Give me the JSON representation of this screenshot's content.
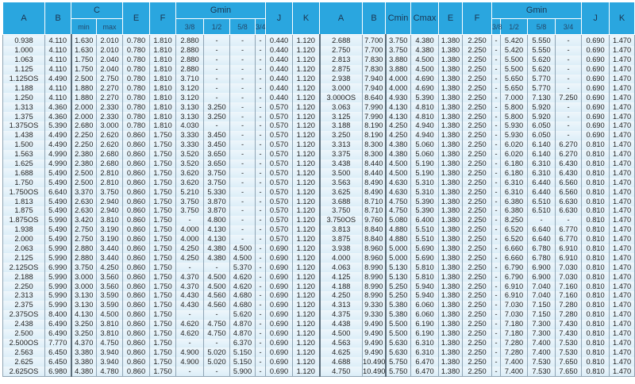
{
  "header": {
    "top": [
      "A",
      "B",
      "C",
      "E",
      "F",
      "Gmin",
      "J",
      "K",
      "A",
      "B",
      "Cmin",
      "Cmax",
      "E",
      "F",
      "Gmin",
      "J",
      "K"
    ],
    "c_sub": [
      "min",
      "max"
    ],
    "g_sub": [
      "3/8",
      "1/2",
      "5/8",
      "3/4"
    ]
  },
  "colors": {
    "header_bg": "#2aa6df",
    "cell_bg": "#e4f2fa"
  },
  "rows": [
    [
      "0.938",
      "4.110",
      "1.630",
      "2.010",
      "0.780",
      "1.810",
      "2.880",
      "-",
      "-",
      "-",
      "0.440",
      "1.120",
      "2.688",
      "7.700",
      "3.750",
      "4.380",
      "1.380",
      "2.250",
      "-",
      "5.420",
      "5.550",
      "-",
      "0.690",
      "1.470"
    ],
    [
      "1.000",
      "4.110",
      "1.630",
      "2.010",
      "0.780",
      "1.810",
      "2.880",
      "-",
      "-",
      "-",
      "0.440",
      "1.120",
      "2.750",
      "7.700",
      "3.750",
      "4.380",
      "1.380",
      "2.250",
      "-",
      "5.420",
      "5.550",
      "-",
      "0.690",
      "1.470"
    ],
    [
      "1.063",
      "4.110",
      "1.750",
      "2.040",
      "0.780",
      "1.810",
      "2.880",
      "-",
      "-",
      "-",
      "0.440",
      "1.120",
      "2.813",
      "7.830",
      "3.880",
      "4.500",
      "1.380",
      "2.250",
      "-",
      "5.500",
      "5.620",
      "-",
      "0.690",
      "1.470"
    ],
    [
      "1.125",
      "4.110",
      "1.750",
      "2.040",
      "0.780",
      "1.810",
      "2.880",
      "-",
      "-",
      "-",
      "0.440",
      "1.120",
      "2.875",
      "7.830",
      "3.880",
      "4.500",
      "1.380",
      "2.250",
      "-",
      "5.500",
      "5.620",
      "-",
      "0.690",
      "1.470"
    ],
    [
      "1.125OS",
      "4.490",
      "2.500",
      "2.750",
      "0.780",
      "1.810",
      "3.710",
      "-",
      "-",
      "-",
      "0.440",
      "1.120",
      "2.938",
      "7.940",
      "4.000",
      "4.690",
      "1.380",
      "2.250",
      "-",
      "5.650",
      "5.770",
      "-",
      "0.690",
      "1.470"
    ],
    [
      "1.188",
      "4.110",
      "1.880",
      "2.270",
      "0.780",
      "1.810",
      "3.120",
      "-",
      "-",
      "-",
      "0.440",
      "1.120",
      "3.000",
      "7.940",
      "4.000",
      "4.690",
      "1.380",
      "2.250",
      "-",
      "5.650",
      "5.770",
      "-",
      "0.690",
      "1.470"
    ],
    [
      "1.250",
      "4.110",
      "1.880",
      "2.270",
      "0.780",
      "1.810",
      "3.120",
      "-",
      "-",
      "-",
      "0.440",
      "1.120",
      "3.000OS",
      "8.640",
      "4.930",
      "5.390",
      "1.380",
      "2.250",
      "-",
      "7.000",
      "7.130",
      "7.250",
      "0.690",
      "1.470"
    ],
    [
      "1.313",
      "4.360",
      "2.000",
      "2.330",
      "0.780",
      "1.810",
      "3.130",
      "3.250",
      "-",
      "-",
      "0.570",
      "1.120",
      "3.063",
      "7.990",
      "4.130",
      "4.810",
      "1.380",
      "2.250",
      "-",
      "5.800",
      "5.920",
      "-",
      "0.690",
      "1.470"
    ],
    [
      "1.375",
      "4.360",
      "2.000",
      "2.330",
      "0.780",
      "1.810",
      "3.130",
      "3.250",
      "-",
      "-",
      "0.570",
      "1.120",
      "3.125",
      "7.990",
      "4.130",
      "4.810",
      "1.380",
      "2.250",
      "-",
      "5.800",
      "5.920",
      "-",
      "0.690",
      "1.470"
    ],
    [
      "1.375OS",
      "5.390",
      "2.680",
      "3.000",
      "0.780",
      "1.810",
      "4.030",
      "-",
      "-",
      "-",
      "0.570",
      "1.120",
      "3.188",
      "8.190",
      "4.250",
      "4.940",
      "1.380",
      "2.250",
      "-",
      "5.930",
      "6.050",
      "-",
      "0.690",
      "1.470"
    ],
    [
      "1.438",
      "4.490",
      "2.250",
      "2.620",
      "0.860",
      "1.750",
      "3.330",
      "3.450",
      "-",
      "-",
      "0.570",
      "1.120",
      "3.250",
      "8.190",
      "4.250",
      "4.940",
      "1.380",
      "2.250",
      "-",
      "5.930",
      "6.050",
      "-",
      "0.690",
      "1.470"
    ],
    [
      "1.500",
      "4.490",
      "2.250",
      "2.620",
      "0.860",
      "1.750",
      "3.330",
      "3.450",
      "-",
      "-",
      "0.570",
      "1.120",
      "3.313",
      "8.300",
      "4.380",
      "5.060",
      "1.380",
      "2.250",
      "-",
      "6.020",
      "6.140",
      "6.270",
      "0.810",
      "1.470"
    ],
    [
      "1.563",
      "4.990",
      "2.380",
      "2.680",
      "0.860",
      "1.750",
      "3.520",
      "3.650",
      "-",
      "-",
      "0.570",
      "1.120",
      "3.375",
      "8.300",
      "4.380",
      "5.060",
      "1.380",
      "2.250",
      "-",
      "6.020",
      "6.140",
      "6.270",
      "0.810",
      "1.470"
    ],
    [
      "1.625",
      "4.990",
      "2.380",
      "2.680",
      "0.860",
      "1.750",
      "3.520",
      "3.650",
      "-",
      "-",
      "0.570",
      "1.120",
      "3.438",
      "8.440",
      "4.500",
      "5.190",
      "1.380",
      "2.250",
      "-",
      "6.180",
      "6.310",
      "6.430",
      "0.810",
      "1.470"
    ],
    [
      "1.688",
      "5.490",
      "2.500",
      "2.810",
      "0.860",
      "1.750",
      "3.620",
      "3.750",
      "-",
      "-",
      "0.570",
      "1.120",
      "3.500",
      "8.440",
      "4.500",
      "5.190",
      "1.380",
      "2.250",
      "-",
      "6.180",
      "6.310",
      "6.430",
      "0.810",
      "1.470"
    ],
    [
      "1.750",
      "5.490",
      "2.500",
      "2.810",
      "0.860",
      "1.750",
      "3.620",
      "3.750",
      "-",
      "-",
      "0.570",
      "1.120",
      "3.563",
      "8.490",
      "4.630",
      "5.310",
      "1.380",
      "2.250",
      "-",
      "6.310",
      "6.440",
      "6.560",
      "0.810",
      "1.470"
    ],
    [
      "1.750OS",
      "6.640",
      "3.370",
      "3.750",
      "0.860",
      "1.750",
      "5.210",
      "5.330",
      "-",
      "-",
      "0.570",
      "1.120",
      "3.625",
      "8.490",
      "4.630",
      "5.310",
      "1.380",
      "2.250",
      "-",
      "6.310",
      "6.440",
      "6.560",
      "0.810",
      "1.470"
    ],
    [
      "1.813",
      "5.490",
      "2.630",
      "2.940",
      "0.860",
      "1.750",
      "3.750",
      "3.870",
      "-",
      "-",
      "0.570",
      "1.120",
      "3.688",
      "8.710",
      "4.750",
      "5.390",
      "1.380",
      "2.250",
      "-",
      "6.380",
      "6.510",
      "6.630",
      "0.810",
      "1.470"
    ],
    [
      "1.875",
      "5.490",
      "2.630",
      "2.940",
      "0.860",
      "1.750",
      "3.750",
      "3.870",
      "-",
      "-",
      "0.570",
      "1.120",
      "3.750",
      "8.710",
      "4.750",
      "5.390",
      "1.380",
      "2.250",
      "-",
      "6.380",
      "6.510",
      "6.630",
      "0.810",
      "1.470"
    ],
    [
      "1.875OS",
      "5.990",
      "3.420",
      "3.810",
      "0.860",
      "1.750",
      "-",
      "4.800",
      "-",
      "-",
      "0.570",
      "1.120",
      "3.750OS",
      "9.760",
      "5.080",
      "6.400",
      "1.380",
      "2.250",
      "-",
      "8.250",
      "-",
      "-",
      "0.810",
      "1.470"
    ],
    [
      "1.938",
      "5.490",
      "2.750",
      "3.190",
      "0.860",
      "1.750",
      "4.000",
      "4.130",
      "-",
      "-",
      "0.570",
      "1.120",
      "3.813",
      "8.840",
      "4.880",
      "5.510",
      "1.380",
      "2.250",
      "-",
      "6.520",
      "6.640",
      "6.770",
      "0.810",
      "1.470"
    ],
    [
      "2.000",
      "5.490",
      "2.750",
      "3.190",
      "0.860",
      "1.750",
      "4.000",
      "4.130",
      "-",
      "-",
      "0.570",
      "1.120",
      "3.875",
      "8.840",
      "4.880",
      "5.510",
      "1.380",
      "2.250",
      "-",
      "6.520",
      "6.640",
      "6.770",
      "0.810",
      "1.470"
    ],
    [
      "2.063",
      "5.990",
      "2.880",
      "3.440",
      "0.860",
      "1.750",
      "4.250",
      "4.380",
      "4.500",
      "-",
      "0.690",
      "1.120",
      "3.938",
      "8.960",
      "5.000",
      "5.690",
      "1.380",
      "2.250",
      "-",
      "6.660",
      "6.780",
      "6.910",
      "0.810",
      "1.470"
    ],
    [
      "2.125",
      "5.990",
      "2.880",
      "3.440",
      "0.860",
      "1.750",
      "4.250",
      "4.380",
      "4.500",
      "-",
      "0.690",
      "1.120",
      "4.000",
      "8.960",
      "5.000",
      "5.690",
      "1.380",
      "2.250",
      "-",
      "6.660",
      "6.780",
      "6.910",
      "0.810",
      "1.470"
    ],
    [
      "2.125OS",
      "6.990",
      "3.750",
      "4.250",
      "0.860",
      "1.750",
      "-",
      "-",
      "5.370",
      "-",
      "0.690",
      "1.120",
      "4.063",
      "8.990",
      "5.130",
      "5.810",
      "1.380",
      "2.250",
      "-",
      "6.790",
      "6.900",
      "7.030",
      "0.810",
      "1.470"
    ],
    [
      "2.188",
      "5.990",
      "3.000",
      "3.560",
      "0.860",
      "1.750",
      "4.370",
      "4.500",
      "4.620",
      "-",
      "0.690",
      "1.120",
      "4.125",
      "8.990",
      "5.130",
      "5.810",
      "1.380",
      "2.250",
      "-",
      "6.790",
      "6.900",
      "7.030",
      "0.810",
      "1.470"
    ],
    [
      "2.250",
      "5.990",
      "3.000",
      "3.560",
      "0.860",
      "1.750",
      "4.370",
      "4.500",
      "4.620",
      "-",
      "0.690",
      "1.120",
      "4.188",
      "8.990",
      "5.250",
      "5.940",
      "1.380",
      "2.250",
      "-",
      "6.910",
      "7.040",
      "7.160",
      "0.810",
      "1.470"
    ],
    [
      "2.313",
      "5.990",
      "3.130",
      "3.590",
      "0.860",
      "1.750",
      "4.430",
      "4.560",
      "4.680",
      "-",
      "0.690",
      "1.120",
      "4.250",
      "8.990",
      "5.250",
      "5.940",
      "1.380",
      "2.250",
      "-",
      "6.910",
      "7.040",
      "7.160",
      "0.810",
      "1.470"
    ],
    [
      "2.375",
      "5.990",
      "3.130",
      "3.590",
      "0.860",
      "1.750",
      "4.430",
      "4.560",
      "4.680",
      "-",
      "0.690",
      "1.120",
      "4.313",
      "9.330",
      "5.380",
      "6.060",
      "1.380",
      "2.250",
      "-",
      "7.030",
      "7.150",
      "7.280",
      "0.810",
      "1.470"
    ],
    [
      "2.375OS",
      "8.400",
      "4.130",
      "4.500",
      "0.860",
      "1.750",
      "-",
      "-",
      "5.620",
      "-",
      "0.690",
      "1.120",
      "4.375",
      "9.330",
      "5.380",
      "6.060",
      "1.380",
      "2.250",
      "-",
      "7.030",
      "7.150",
      "7.280",
      "0.810",
      "1.470"
    ],
    [
      "2.438",
      "6.490",
      "3.250",
      "3.810",
      "0.860",
      "1.750",
      "4.620",
      "4.750",
      "4.870",
      "-",
      "0.690",
      "1.120",
      "4.438",
      "9.490",
      "5.500",
      "6.190",
      "1.380",
      "2.250",
      "-",
      "7.180",
      "7.300",
      "7.430",
      "0.810",
      "1.470"
    ],
    [
      "2.500",
      "6.490",
      "3.250",
      "3.810",
      "0.860",
      "1.750",
      "4.620",
      "4.750",
      "4.870",
      "-",
      "0.690",
      "1.120",
      "4.500",
      "9.490",
      "5.500",
      "6.190",
      "1.380",
      "2.250",
      "-",
      "7.180",
      "7.300",
      "7.430",
      "0.810",
      "1.470"
    ],
    [
      "2.500OS",
      "7.770",
      "4.370",
      "4.750",
      "0.860",
      "1.750",
      "-",
      "-",
      "6.370",
      "-",
      "0.690",
      "1.120",
      "4.563",
      "9.490",
      "5.630",
      "6.310",
      "1.380",
      "2.250",
      "-",
      "7.280",
      "7.400",
      "7.530",
      "0.810",
      "1.470"
    ],
    [
      "2.563",
      "6.450",
      "3.380",
      "3.940",
      "0.860",
      "1.750",
      "4.900",
      "5.020",
      "5.150",
      "-",
      "0.690",
      "1.120",
      "4.625",
      "9.490",
      "5.630",
      "6.310",
      "1.380",
      "2.250",
      "-",
      "7.280",
      "7.400",
      "7.530",
      "0.810",
      "1.470"
    ],
    [
      "2.625",
      "6.450",
      "3.380",
      "3.940",
      "0.860",
      "1.750",
      "4.900",
      "5.020",
      "5.150",
      "-",
      "0.690",
      "1.120",
      "4.688",
      "10.490",
      "5.750",
      "6.470",
      "1.380",
      "2.250",
      "-",
      "7.400",
      "7.530",
      "7.650",
      "0.810",
      "1.470"
    ],
    [
      "2.625OS",
      "6.980",
      "4.380",
      "4.780",
      "0.860",
      "1.750",
      "-",
      "-",
      "5.900",
      "-",
      "0.690",
      "1.120",
      "4.750",
      "10.490",
      "5.750",
      "6.470",
      "1.380",
      "2.250",
      "-",
      "7.400",
      "7.530",
      "7.650",
      "0.810",
      "1.470"
    ]
  ]
}
